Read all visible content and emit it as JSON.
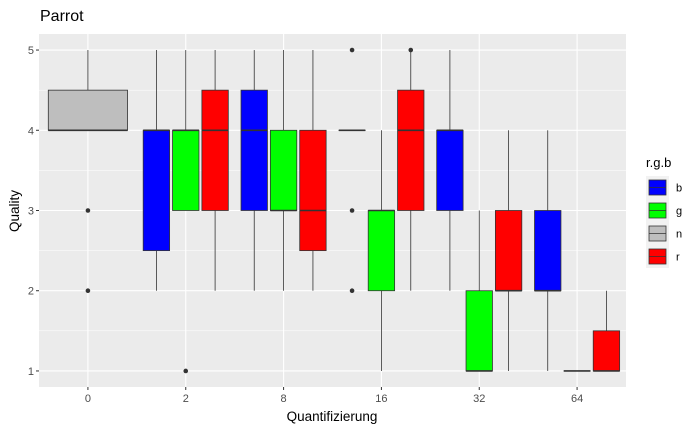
{
  "chart_data": {
    "type": "boxplot",
    "title": "Parrot",
    "xlabel": "Quantifizierung",
    "ylabel": "Quality",
    "categories": [
      "0",
      "2",
      "8",
      "16",
      "32",
      "64"
    ],
    "ylim": [
      0.8,
      5.2
    ],
    "yticks": [
      1,
      2,
      3,
      4,
      5
    ],
    "grid": true,
    "legend": {
      "title": "r.g.b",
      "position": "right",
      "entries": [
        {
          "key": "b",
          "label": "b",
          "color": "#0000ff"
        },
        {
          "key": "g",
          "label": "g",
          "color": "#00ff00"
        },
        {
          "key": "n",
          "label": "n",
          "color": "#bebebe"
        },
        {
          "key": "r",
          "label": "r",
          "color": "#ff0000"
        }
      ]
    },
    "series": [
      {
        "name": "n",
        "color": "#bebebe",
        "boxes": [
          {
            "category": "0",
            "min": 4,
            "q1": 4,
            "median": 4,
            "q3": 4.5,
            "max": 5,
            "outliers": [
              3,
              2
            ]
          }
        ]
      },
      {
        "name": "b",
        "color": "#0000ff",
        "boxes": [
          {
            "category": "2",
            "min": 2,
            "q1": 2.5,
            "median": 4,
            "q3": 4,
            "max": 5,
            "outliers": []
          },
          {
            "category": "8",
            "min": 2,
            "q1": 3,
            "median": 4,
            "q3": 4.5,
            "max": 5,
            "outliers": []
          },
          {
            "category": "16",
            "min": 4,
            "q1": 4,
            "median": 4,
            "q3": 4,
            "max": 4,
            "outliers": [
              5,
              3,
              2
            ]
          },
          {
            "category": "32",
            "min": 2,
            "q1": 3,
            "median": 4,
            "q3": 4,
            "max": 5,
            "outliers": []
          },
          {
            "category": "64",
            "min": 1,
            "q1": 2,
            "median": 2,
            "q3": 3,
            "max": 4,
            "outliers": []
          }
        ]
      },
      {
        "name": "g",
        "color": "#00ff00",
        "boxes": [
          {
            "category": "2",
            "min": 3,
            "q1": 3,
            "median": 4,
            "q3": 4,
            "max": 5,
            "outliers": [
              1
            ]
          },
          {
            "category": "8",
            "min": 2,
            "q1": 3,
            "median": 3,
            "q3": 4,
            "max": 5,
            "outliers": []
          },
          {
            "category": "16",
            "min": 1,
            "q1": 2,
            "median": 3,
            "q3": 3,
            "max": 4,
            "outliers": []
          },
          {
            "category": "32",
            "min": 1,
            "q1": 1,
            "median": 1,
            "q3": 2,
            "max": 3,
            "outliers": []
          },
          {
            "category": "64",
            "min": 1,
            "q1": 1,
            "median": 1,
            "q3": 1,
            "max": 1,
            "outliers": []
          }
        ]
      },
      {
        "name": "r",
        "color": "#ff0000",
        "boxes": [
          {
            "category": "2",
            "min": 2,
            "q1": 3,
            "median": 4,
            "q3": 4.5,
            "max": 5,
            "outliers": []
          },
          {
            "category": "8",
            "min": 2,
            "q1": 2.5,
            "median": 3,
            "q3": 4,
            "max": 5,
            "outliers": []
          },
          {
            "category": "16",
            "min": 2,
            "q1": 3,
            "median": 4,
            "q3": 4.5,
            "max": 5,
            "outliers": [
              5
            ]
          },
          {
            "category": "32",
            "min": 1,
            "q1": 2,
            "median": 2,
            "q3": 3,
            "max": 4,
            "outliers": []
          },
          {
            "category": "64",
            "min": 1,
            "q1": 1,
            "median": 1,
            "q3": 1.5,
            "max": 2,
            "outliers": []
          }
        ]
      }
    ]
  }
}
